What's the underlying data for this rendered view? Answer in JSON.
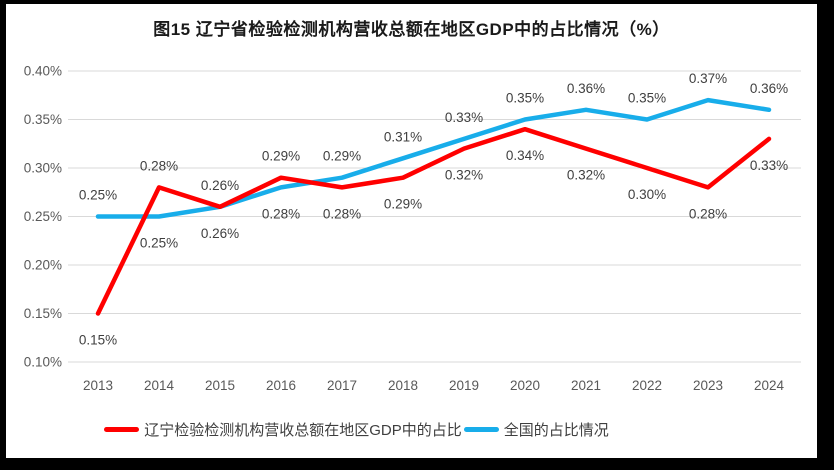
{
  "window": {
    "title": "图15 辽宁省检验检测机构营收总额在地区GDP中的占比情况（%）"
  },
  "chart_data": {
    "type": "line",
    "title": "图15 辽宁省检验检测机构营收总额在地区GDP中的占比情况（%）",
    "xlabel": "",
    "ylabel": "",
    "categories": [
      "2013",
      "2014",
      "2015",
      "2016",
      "2017",
      "2018",
      "2019",
      "2020",
      "2021",
      "2022",
      "2023",
      "2024"
    ],
    "y_tick_labels": [
      "0.40%",
      "0.35%",
      "0.30%",
      "0.25%",
      "0.20%",
      "0.15%",
      "0.10%"
    ],
    "y_tick_values": [
      0.4,
      0.35,
      0.3,
      0.25,
      0.2,
      0.15,
      0.1
    ],
    "ylim": [
      0.1,
      0.4
    ],
    "grid": true,
    "legend_position": "bottom",
    "series": [
      {
        "name": "辽宁检验检测机构营收总额在地区GDP中的占比",
        "color": "#FF0000",
        "values": [
          0.15,
          0.28,
          0.26,
          0.29,
          0.28,
          0.29,
          0.32,
          0.34,
          0.32,
          0.3,
          0.28,
          0.33
        ],
        "data_labels": [
          "0.15%",
          "0.28%",
          "0.26%",
          "0.29%",
          "0.28%",
          "0.29%",
          "0.32%",
          "0.34%",
          "0.32%",
          "0.30%",
          "0.28%",
          "0.33%"
        ],
        "label_positions": [
          "below",
          "above",
          "above",
          "above",
          "below",
          "below",
          "below",
          "below",
          "below",
          "below",
          "below",
          "below"
        ]
      },
      {
        "name": "全国的占比情况",
        "color": "#18ADEA",
        "values": [
          0.25,
          0.25,
          0.26,
          0.28,
          0.29,
          0.31,
          0.33,
          0.35,
          0.36,
          0.35,
          0.37,
          0.36
        ],
        "data_labels": [
          "0.25%",
          "0.25%",
          "0.26%",
          "0.28%",
          "0.29%",
          "0.31%",
          "0.33%",
          "0.35%",
          "0.36%",
          "0.35%",
          "0.37%",
          "0.36%"
        ],
        "label_positions": [
          "above",
          "below",
          "below",
          "below",
          "above",
          "above",
          "above",
          "above",
          "above",
          "above",
          "above",
          "above"
        ]
      }
    ],
    "colors": {
      "grid": "#D9D9D9",
      "axis_text": "#595959",
      "data_label_text": "#3f3f3f",
      "title_text": "#1a1a1a",
      "background": "#FFFFFF",
      "frame": "#000000"
    }
  },
  "legend": {
    "items": [
      {
        "label": "辽宁检验检测机构营收总额在地区GDP中的占比",
        "color": "#FF0000"
      },
      {
        "label": "全国的占比情况",
        "color": "#18ADEA"
      }
    ]
  }
}
